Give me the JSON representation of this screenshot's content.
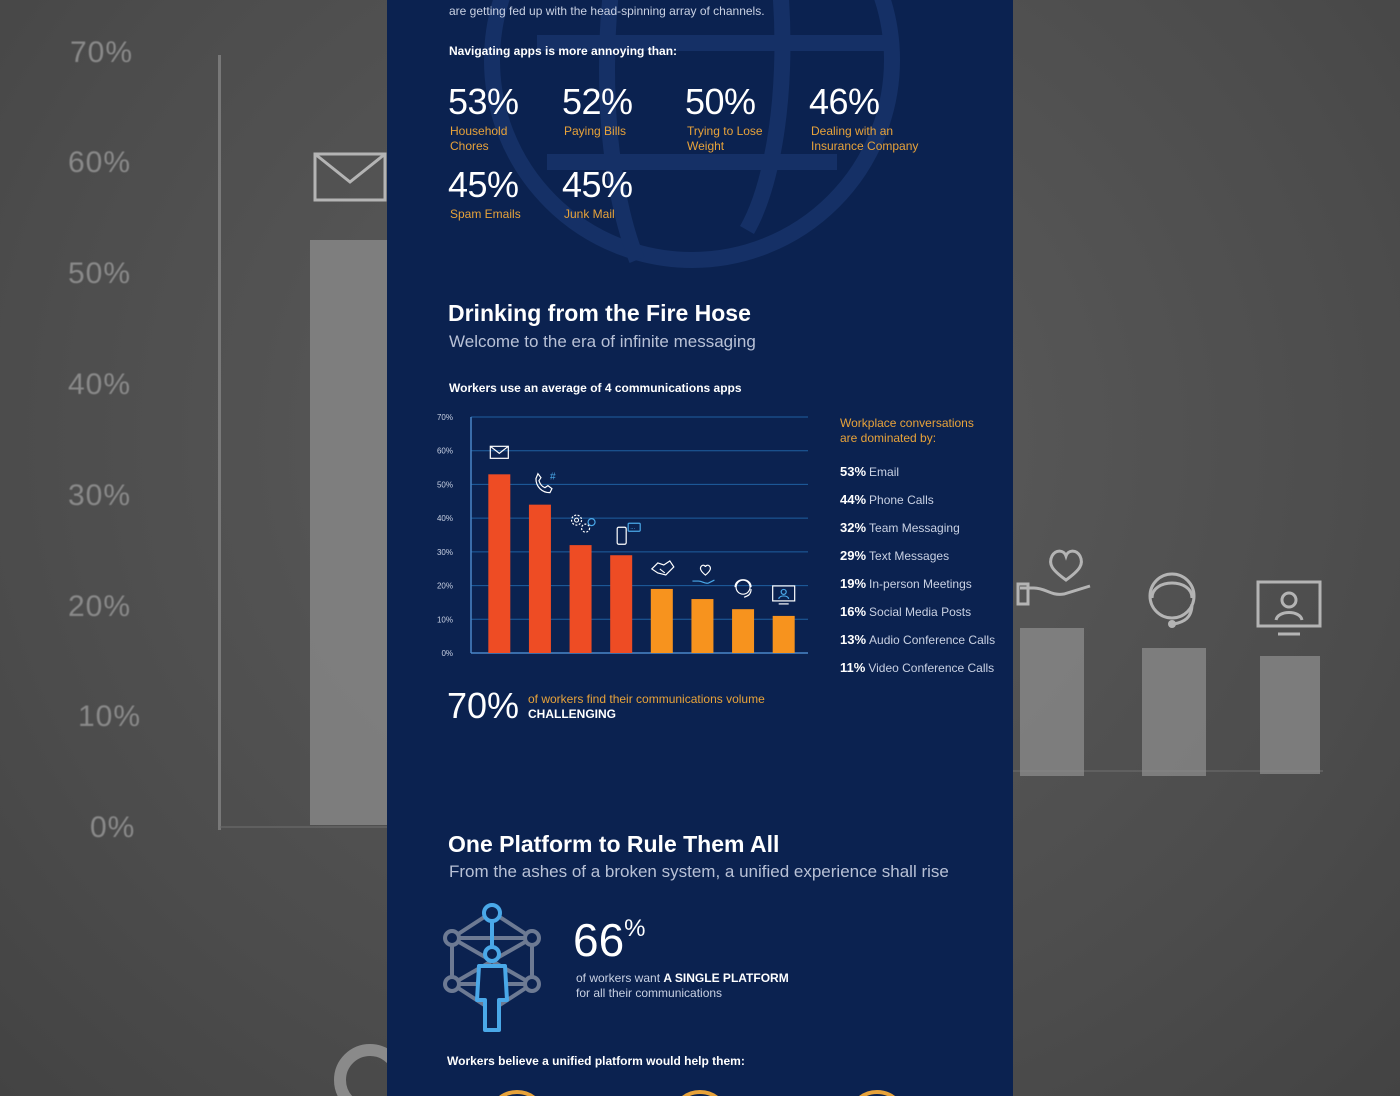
{
  "panel": {
    "intro_text": "are getting fed up with the head-spinning array of channels.",
    "nav_heading": "Navigating apps is more annoying than:",
    "annoying_stats": [
      {
        "value": "53%",
        "label_line1": "Household",
        "label_line2": "Chores"
      },
      {
        "value": "52%",
        "label_line1": "Paying Bills",
        "label_line2": ""
      },
      {
        "value": "50%",
        "label_line1": "Trying to Lose",
        "label_line2": "Weight"
      },
      {
        "value": "46%",
        "label_line1": "Dealing with an",
        "label_line2": "Insurance Company"
      },
      {
        "value": "45%",
        "label_line1": "Spam Emails",
        "label_line2": ""
      },
      {
        "value": "45%",
        "label_line1": "Junk Mail",
        "label_line2": ""
      }
    ],
    "section1": {
      "title": "Drinking from the Fire Hose",
      "subtitle": "Welcome to the era of infinite messaging",
      "chart_heading": "Workers use an average of 4 communications apps"
    },
    "legend": {
      "intro_line1": "Workplace conversations",
      "intro_line2": "are dominated by:",
      "items": [
        {
          "pct": "53%",
          "label": "Email"
        },
        {
          "pct": "44%",
          "label": "Phone Calls"
        },
        {
          "pct": "32%",
          "label": "Team Messaging"
        },
        {
          "pct": "29%",
          "label": "Text Messages"
        },
        {
          "pct": "19%",
          "label": "In-person Meetings"
        },
        {
          "pct": "16%",
          "label": "Social Media Posts"
        },
        {
          "pct": "13%",
          "label": "Audio Conference Calls"
        },
        {
          "pct": "11%",
          "label": "Video Conference Calls"
        }
      ]
    },
    "challenge": {
      "value": "70%",
      "line1": "of workers find their communications volume",
      "line2": "CHALLENGING"
    },
    "section2": {
      "title": "One Platform to Rule Them All",
      "subtitle": "From the ashes of a broken system, a unified experience shall rise"
    },
    "platform": {
      "value": "66",
      "suffix": "%",
      "line1_prefix": "of workers want ",
      "line1_strong": "A SINGLE PLATFORM",
      "line2": "for all their communications"
    },
    "unified_heading": "Workers believe a unified platform would help them:"
  },
  "background": {
    "axis_labels": [
      "70%",
      "60%",
      "50%",
      "40%",
      "30%",
      "20%",
      "10%",
      "0%"
    ]
  },
  "colors": {
    "panel_bg": "#0b2250",
    "bar_red": "#ee4c24",
    "bar_orange": "#f7931e",
    "accent_gold": "#e8a33a",
    "grid_blue": "#1f5fa0"
  },
  "chart_data": {
    "type": "bar",
    "title": "",
    "categories": [
      "Email",
      "Phone Calls",
      "Team Messaging",
      "Text Messages",
      "In-person Meetings",
      "Social Media Posts",
      "Audio Conference Calls",
      "Video Conference Calls"
    ],
    "category_icons": [
      "envelope-icon",
      "phone-hashtag-icon",
      "gears-icon",
      "mobile-chat-icon",
      "handshake-icon",
      "heart-hand-icon",
      "headset-icon",
      "monitor-user-icon"
    ],
    "values": [
      53,
      44,
      32,
      29,
      19,
      16,
      13,
      11
    ],
    "bar_colors": [
      "#ee4c24",
      "#ee4c24",
      "#ee4c24",
      "#ee4c24",
      "#f7931e",
      "#f7931e",
      "#f7931e",
      "#f7931e"
    ],
    "y_ticks": [
      "0%",
      "10%",
      "20%",
      "30%",
      "40%",
      "50%",
      "60%",
      "70%"
    ],
    "ylim": [
      0,
      70
    ],
    "grid": true,
    "legend": "right"
  }
}
